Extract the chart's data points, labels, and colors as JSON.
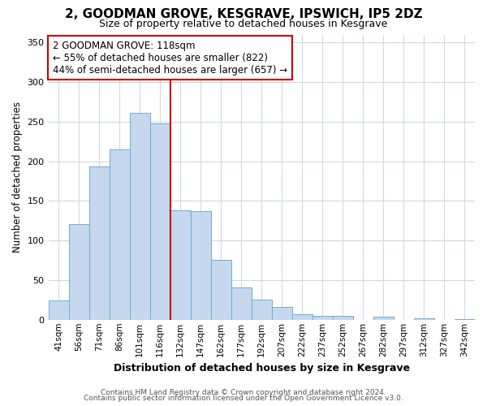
{
  "title": "2, GOODMAN GROVE, KESGRAVE, IPSWICH, IP5 2DZ",
  "subtitle": "Size of property relative to detached houses in Kesgrave",
  "xlabel": "Distribution of detached houses by size in Kesgrave",
  "ylabel": "Number of detached properties",
  "bar_labels": [
    "41sqm",
    "56sqm",
    "71sqm",
    "86sqm",
    "101sqm",
    "116sqm",
    "132sqm",
    "147sqm",
    "162sqm",
    "177sqm",
    "192sqm",
    "207sqm",
    "222sqm",
    "237sqm",
    "252sqm",
    "267sqm",
    "282sqm",
    "297sqm",
    "312sqm",
    "327sqm",
    "342sqm"
  ],
  "bar_values": [
    24,
    121,
    193,
    215,
    261,
    248,
    138,
    137,
    76,
    41,
    25,
    16,
    7,
    5,
    5,
    0,
    4,
    0,
    2,
    0,
    1
  ],
  "bar_color": "#c5d8ed",
  "bar_edge_color": "#6aaed6",
  "property_line_color": "#cc0000",
  "annotation_title": "2 GOODMAN GROVE: 118sqm",
  "annotation_line1": "← 55% of detached houses are smaller (822)",
  "annotation_line2": "44% of semi-detached houses are larger (657) →",
  "annotation_box_color": "#cc0000",
  "ylim": [
    0,
    360
  ],
  "yticks": [
    0,
    50,
    100,
    150,
    200,
    250,
    300,
    350
  ],
  "footer_line1": "Contains HM Land Registry data © Crown copyright and database right 2024.",
  "footer_line2": "Contains public sector information licensed under the Open Government Licence v3.0.",
  "background_color": "#ffffff",
  "grid_color": "#d0d8e8"
}
